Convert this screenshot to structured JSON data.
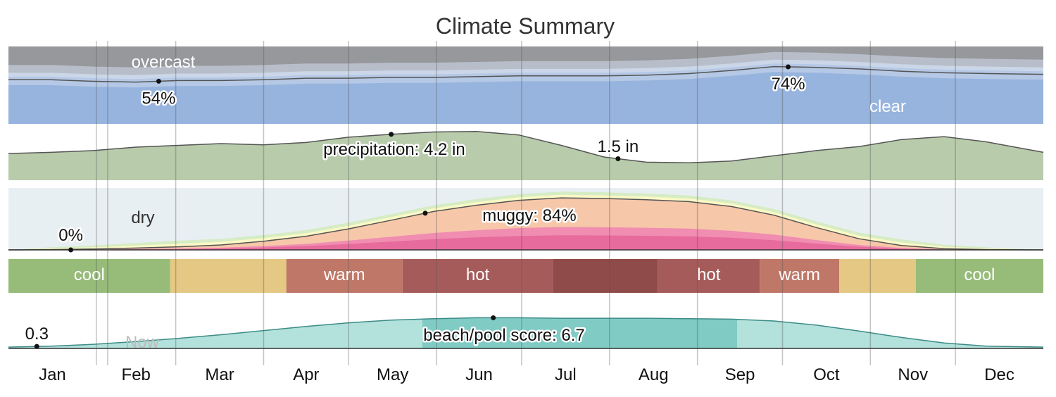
{
  "chart_data": {
    "type": "area",
    "title": "Climate Summary",
    "months": [
      "Jan",
      "Feb",
      "Mar",
      "Apr",
      "May",
      "Jun",
      "Jul",
      "Aug",
      "Sep",
      "Oct",
      "Nov",
      "Dec"
    ],
    "x_day": [
      0,
      15,
      30,
      45,
      60,
      75,
      90,
      105,
      120,
      135,
      150,
      165,
      180,
      195,
      210,
      225,
      240,
      255,
      270,
      285,
      300,
      315,
      330,
      345,
      365
    ],
    "cloud": {
      "top_label": "overcast",
      "bottom_label": "clear",
      "clear_pct": [
        57,
        57,
        55,
        54,
        56,
        56,
        57,
        59,
        59,
        60,
        60,
        61,
        62,
        62,
        62,
        63,
        65,
        69,
        74,
        73,
        71,
        68,
        66,
        65,
        64
      ],
      "min_label": "54%",
      "min_day": 53,
      "max_label": "74%",
      "max_day": 275,
      "colors": {
        "overcast": "#96989c",
        "mostly_cloudy": "#b8bec9",
        "partly": "#cbd7e8",
        "mostly_clear": "#b5c8e5",
        "clear": "#97b4de"
      }
    },
    "precipitation": {
      "label": "precipitation: 4.2 in",
      "min_label": "1.5 in",
      "unit": "in",
      "values_in": [
        2.3,
        2.4,
        2.55,
        2.85,
        3.0,
        3.15,
        3.05,
        3.25,
        3.7,
        3.95,
        4.15,
        4.2,
        3.9,
        3.0,
        2.0,
        1.55,
        1.5,
        1.65,
        2.1,
        2.55,
        2.9,
        3.5,
        3.75,
        3.3,
        2.4
      ],
      "max_day": 135,
      "min_day": 215,
      "color": "#b8cbab"
    },
    "humidity": {
      "dry_label": "dry",
      "min_label": "0%",
      "label": "muggy: 84%",
      "muggy_pct": [
        0,
        0.5,
        1.5,
        3,
        5,
        8,
        14,
        22,
        34,
        48,
        62,
        72,
        80,
        84,
        83,
        81,
        78,
        70,
        56,
        36,
        18,
        7,
        2,
        0.5,
        0
      ],
      "max_day": 147,
      "min_day": 22,
      "colors": {
        "dry": "#e8eff3",
        "comfortable": "#d6ecc4",
        "humid": "#fbf9c6",
        "muggy": "#f6c7a9",
        "oppressive": "#f08db0",
        "miserable": "#e76b9c"
      }
    },
    "temperature_bands": [
      {
        "label": "cool",
        "from": 0,
        "to": 57,
        "color": "#97bb79"
      },
      {
        "label": "",
        "from": 57,
        "to": 98,
        "color": "#e4c883"
      },
      {
        "label": "warm",
        "from": 98,
        "to": 139,
        "color": "#bf7767"
      },
      {
        "label": "hot",
        "from": 139,
        "to": 192,
        "color": "#a65b5b"
      },
      {
        "label": "",
        "from": 192,
        "to": 229,
        "color": "#8e4b4a"
      },
      {
        "label": "hot",
        "from": 229,
        "to": 265,
        "color": "#a65b5b"
      },
      {
        "label": "warm",
        "from": 265,
        "to": 293,
        "color": "#bf7767"
      },
      {
        "label": "",
        "from": 293,
        "to": 320,
        "color": "#e4c883"
      },
      {
        "label": "cool",
        "from": 320,
        "to": 365,
        "color": "#97bb79"
      }
    ],
    "beach_pool": {
      "label": "beach/pool score: 6.7",
      "min_label": "0.3",
      "now_label": "Now",
      "score": [
        0.3,
        0.5,
        0.9,
        1.5,
        2.2,
        3.0,
        3.9,
        4.8,
        5.6,
        6.2,
        6.5,
        6.7,
        6.7,
        6.6,
        6.6,
        6.6,
        6.5,
        6.4,
        6.0,
        5.1,
        3.8,
        2.4,
        1.2,
        0.5,
        0.3
      ],
      "max_day": 171,
      "min_day": 10,
      "best_window": [
        146,
        257
      ],
      "colors": {
        "score": "#b3e1dc",
        "best": "#80cbc4",
        "line": "#3c8b86"
      }
    },
    "month_dividers_day": [
      31,
      59,
      90,
      120,
      151,
      181,
      212,
      243,
      273,
      304,
      334
    ],
    "today_day": 35
  }
}
